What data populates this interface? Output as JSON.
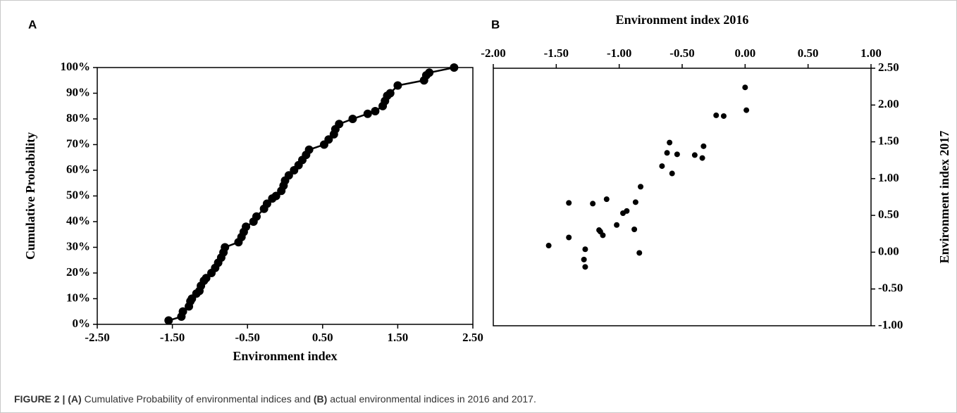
{
  "chart_data": [
    {
      "type": "line",
      "panel": "A",
      "xlabel": "Environment index",
      "ylabel": "Cumulative Probability",
      "color": "#000000",
      "x_axis_position": "bottom",
      "y_axis_position": "left",
      "x": [
        -1.55,
        -1.38,
        -1.36,
        -1.28,
        -1.26,
        -1.24,
        -1.18,
        -1.14,
        -1.12,
        -1.08,
        -1.05,
        -0.98,
        -0.93,
        -0.89,
        -0.85,
        -0.82,
        -0.8,
        -0.62,
        -0.58,
        -0.55,
        -0.52,
        -0.42,
        -0.38,
        -0.28,
        -0.24,
        -0.17,
        -0.12,
        -0.05,
        -0.02,
        0.0,
        0.05,
        0.12,
        0.18,
        0.23,
        0.28,
        0.32,
        0.52,
        0.58,
        0.65,
        0.67,
        0.72,
        0.9,
        1.1,
        1.2,
        1.3,
        1.33,
        1.36,
        1.4,
        1.5,
        1.85,
        1.88,
        1.92,
        2.25
      ],
      "values": [
        1.5,
        3,
        5,
        7,
        9,
        10,
        12,
        13,
        15,
        17,
        18,
        20,
        22,
        24,
        26,
        28,
        30,
        32,
        34,
        36,
        38,
        40,
        42,
        45,
        47,
        49,
        50,
        52,
        54,
        56,
        58,
        60,
        62,
        64,
        66,
        68,
        70,
        72,
        74,
        76,
        78,
        80,
        82,
        83,
        85,
        87,
        89,
        90,
        93,
        95,
        97,
        98,
        100
      ],
      "xlim": [
        -2.5,
        2.5
      ],
      "xticks": [
        {
          "value": -2.5,
          "label": "-2.50"
        },
        {
          "value": -1.5,
          "label": "-1.50"
        },
        {
          "value": -0.5,
          "label": "-0.50"
        },
        {
          "value": 0.5,
          "label": "0.50"
        },
        {
          "value": 1.5,
          "label": "1.50"
        },
        {
          "value": 2.5,
          "label": "2.50"
        }
      ],
      "ylim": [
        0,
        100
      ],
      "yticks": [
        {
          "value": 0,
          "label": "0%"
        },
        {
          "value": 10,
          "label": "10%"
        },
        {
          "value": 20,
          "label": "20%"
        },
        {
          "value": 30,
          "label": "30%"
        },
        {
          "value": 40,
          "label": "40%"
        },
        {
          "value": 50,
          "label": "50%"
        },
        {
          "value": 60,
          "label": "60%"
        },
        {
          "value": 70,
          "label": "70%"
        },
        {
          "value": 80,
          "label": "80%"
        },
        {
          "value": 90,
          "label": "90%"
        },
        {
          "value": 100,
          "label": "100%"
        }
      ]
    },
    {
      "type": "scatter",
      "panel": "B",
      "xlabel": "Environment index 2016",
      "ylabel": "Environment index 2017",
      "color": "#000000",
      "x_axis_position": "top",
      "y_axis_position": "right",
      "x": [
        -1.56,
        -1.4,
        -1.4,
        -1.28,
        -1.27,
        -1.27,
        -1.21,
        -1.16,
        -1.15,
        -1.13,
        -1.1,
        -1.02,
        -0.97,
        -0.94,
        -0.88,
        -0.87,
        -0.84,
        -0.83,
        -0.66,
        -0.62,
        -0.6,
        -0.58,
        -0.54,
        -0.4,
        -0.34,
        -0.33,
        -0.23,
        -0.17,
        0.0,
        0.01
      ],
      "values": [
        0.09,
        0.67,
        0.2,
        -0.1,
        0.04,
        -0.2,
        0.66,
        0.3,
        0.28,
        0.23,
        0.72,
        0.37,
        0.53,
        0.56,
        0.31,
        0.68,
        -0.01,
        0.89,
        1.17,
        1.35,
        1.49,
        1.07,
        1.33,
        1.32,
        1.28,
        1.44,
        1.86,
        1.85,
        2.24,
        1.93
      ],
      "xlim": [
        -2.0,
        1.0
      ],
      "xticks": [
        {
          "value": -2.0,
          "label": "-2.00"
        },
        {
          "value": -1.5,
          "label": "-1.50"
        },
        {
          "value": -1.0,
          "label": "-1.00"
        },
        {
          "value": -0.5,
          "label": "-0.50"
        },
        {
          "value": 0.0,
          "label": "0.00"
        },
        {
          "value": 0.5,
          "label": "0.50"
        },
        {
          "value": 1.0,
          "label": "1.00"
        }
      ],
      "ylim": [
        -1.0,
        2.5
      ],
      "yticks": [
        {
          "value": -1.0,
          "label": "-1.00"
        },
        {
          "value": -0.5,
          "label": "-0.50"
        },
        {
          "value": 0.0,
          "label": "0.00"
        },
        {
          "value": 0.5,
          "label": "0.50"
        },
        {
          "value": 1.0,
          "label": "1.00"
        },
        {
          "value": 1.5,
          "label": "1.50"
        },
        {
          "value": 2.0,
          "label": "2.00"
        },
        {
          "value": 2.5,
          "label": "2.50"
        }
      ]
    }
  ],
  "caption": [
    "FIGURE 2 | ",
    "(A)",
    " Cumulative Probability of environmental indices and ",
    "(B)",
    " actual environmental indices in 2016 and 2017."
  ]
}
